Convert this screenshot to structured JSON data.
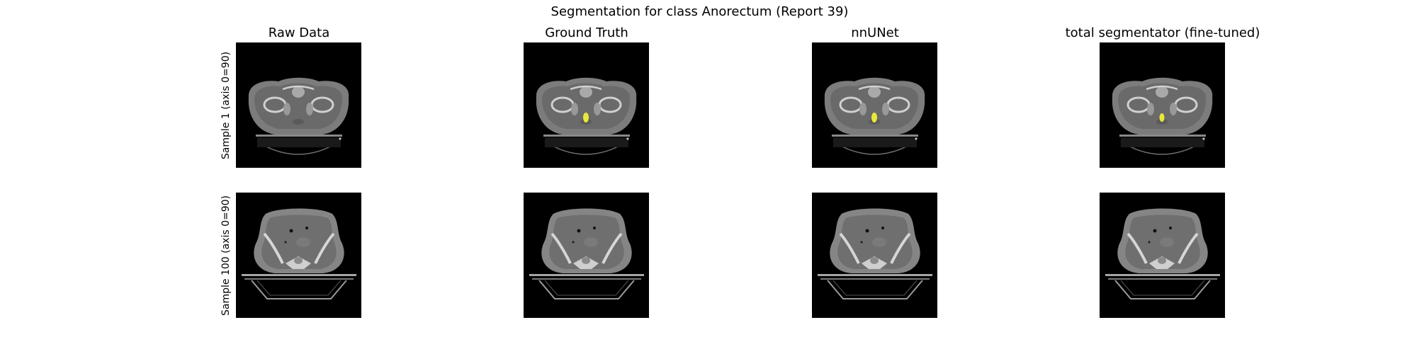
{
  "figure": {
    "title": "Segmentation for class Anorectum (Report 39)",
    "columns": [
      "Raw Data",
      "Ground Truth",
      "nnUNet",
      "total segmentator (fine-tuned)"
    ],
    "rows": [
      "Sample 1 (axis 0=90)",
      "Sample 100 (axis 0=90)"
    ]
  },
  "panels": [
    {
      "row": 0,
      "col": 0,
      "image": "ct-axial-slice",
      "mask_visible": false
    },
    {
      "row": 0,
      "col": 1,
      "image": "ct-axial-slice",
      "mask_visible": true
    },
    {
      "row": 0,
      "col": 2,
      "image": "ct-axial-slice",
      "mask_visible": true
    },
    {
      "row": 0,
      "col": 3,
      "image": "ct-axial-slice",
      "mask_visible": true
    },
    {
      "row": 1,
      "col": 0,
      "image": "ct-axial-slice",
      "mask_visible": false
    },
    {
      "row": 1,
      "col": 1,
      "image": "ct-axial-slice",
      "mask_visible": false
    },
    {
      "row": 1,
      "col": 2,
      "image": "ct-axial-slice",
      "mask_visible": false
    },
    {
      "row": 1,
      "col": 3,
      "image": "ct-axial-slice",
      "mask_visible": false
    }
  ],
  "colors": {
    "mask": "#e8e83a",
    "background": "#000000"
  }
}
